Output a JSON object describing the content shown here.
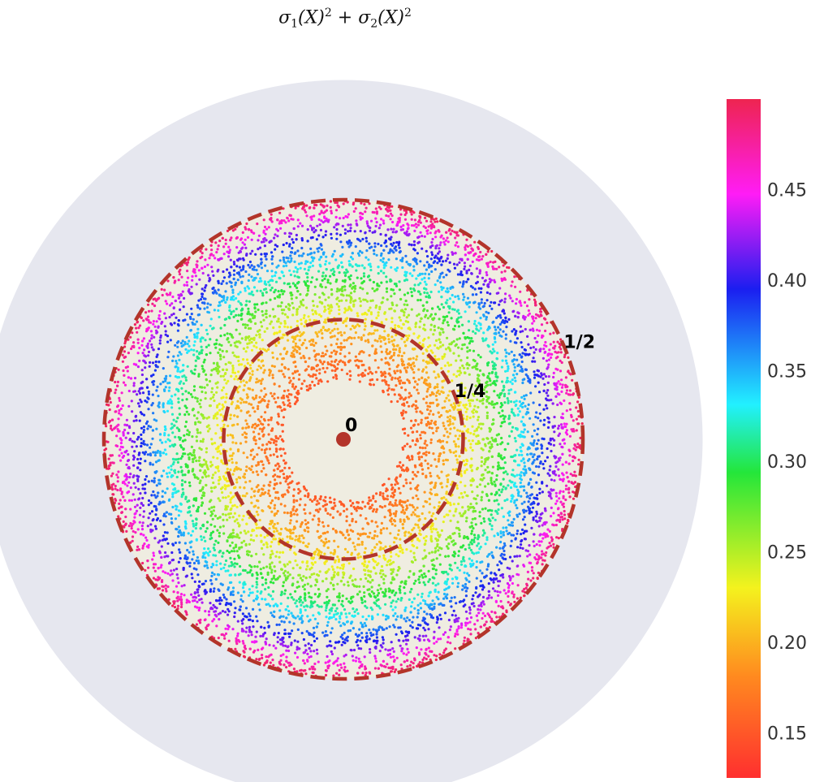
{
  "title": {
    "text": "σ1(X)2 + σ2(X)2",
    "term1_base": "σ",
    "term1_sub": "1",
    "term1_arg": "(X)",
    "term1_sup": "2",
    "plus": " + ",
    "term2_base": "σ",
    "term2_sub": "2",
    "term2_arg": "(X)",
    "term2_sup": "2"
  },
  "chart_data": {
    "type": "scatter",
    "description_free": true,
    "domain": {
      "outer_disk_radius_units": 0.75,
      "empty_center_radius_units": 0.125,
      "data_annulus": [
        0.125,
        0.5
      ],
      "background_color": "#e6e7ef",
      "inner_fill_color": "#efede1"
    },
    "reference_circles": [
      {
        "radius": 0.25,
        "label": "1/4",
        "color": "#b3342a",
        "dashed": true
      },
      {
        "radius": 0.5,
        "label": "1/2",
        "color": "#b3342a",
        "dashed": true
      }
    ],
    "center_point": {
      "x": 0,
      "y": 0,
      "label": "0",
      "color": "#b3342a"
    },
    "point_count": 9000,
    "color_mapping": "value ≈ 0.125 + 1.5·r² (r in data units)",
    "colorbar": {
      "min": 0.125,
      "max": 0.5,
      "ticks": [
        0.15,
        0.2,
        0.25,
        0.3,
        0.35,
        0.4,
        0.45
      ],
      "tick_labels": [
        "0.15",
        "0.20",
        "0.25",
        "0.30",
        "0.35",
        "0.40",
        "0.45"
      ],
      "colorscale": [
        [
          0.0,
          "#ff2f2f"
        ],
        [
          0.15,
          "#ff8a1f"
        ],
        [
          0.28,
          "#f4f21e"
        ],
        [
          0.45,
          "#24e63a"
        ],
        [
          0.55,
          "#22f0ff"
        ],
        [
          0.72,
          "#1b1ef0"
        ],
        [
          0.86,
          "#ff1cf6"
        ],
        [
          1.0,
          "#ee2450"
        ]
      ]
    }
  }
}
